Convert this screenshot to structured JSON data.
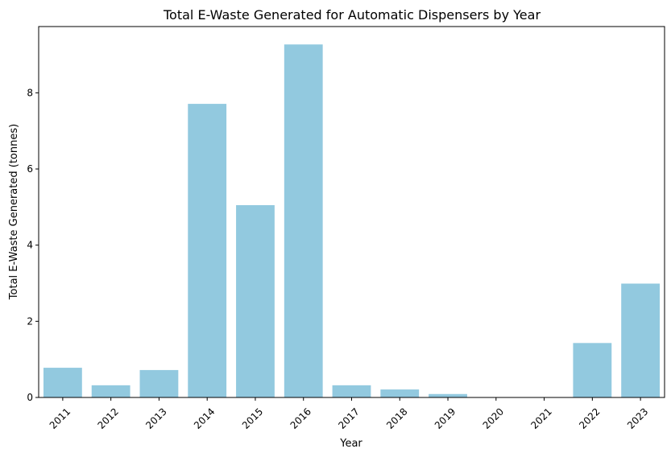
{
  "chart_data": {
    "type": "bar",
    "title": "Total E-Waste Generated for Automatic Dispensers by Year",
    "xlabel": "Year",
    "ylabel": "Total E-Waste Generated (tonnes)",
    "categories": [
      "2011",
      "2012",
      "2013",
      "2014",
      "2015",
      "2016",
      "2017",
      "2018",
      "2019",
      "2020",
      "2021",
      "2022",
      "2023"
    ],
    "values": [
      0.78,
      0.32,
      0.72,
      7.71,
      5.05,
      9.27,
      0.32,
      0.21,
      0.09,
      0.0,
      0.0,
      1.43,
      2.99
    ],
    "ylim": [
      0,
      9.74
    ],
    "yticks": [
      0,
      2,
      4,
      6,
      8
    ],
    "ytick_labels": [
      "0",
      "2",
      "4",
      "6",
      "8"
    ],
    "bar_color": "#92c9df",
    "grid": false,
    "legend": "none",
    "xtick_rotation": 45
  }
}
